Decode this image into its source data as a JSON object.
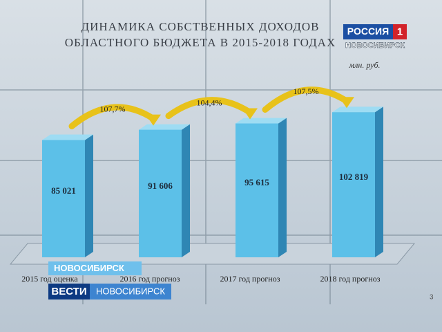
{
  "chart_data": {
    "type": "bar",
    "title": [
      "ДИНАМИКА СОБСТВЕННЫХ ДОХОДОВ",
      "ОБЛАСТНОГО БЮДЖЕТА В 2015-2018 ГОДАХ"
    ],
    "unit": "млн. руб.",
    "categories": [
      "2015 год оценка",
      "2016 год прогноз",
      "2017 год прогноз",
      "2018 год прогноз"
    ],
    "values": [
      85021,
      91606,
      95615,
      102819
    ],
    "value_labels": [
      "85 021",
      "91 606",
      "95 615",
      "102 819"
    ],
    "annotations": [
      "107,7%",
      "104,4%",
      "107,5%"
    ],
    "color": "#5cc0e8",
    "ylim": [
      10000,
      110000
    ]
  },
  "slide_number": "3",
  "overlay": {
    "logo": "РОССИЯ",
    "logo_number": "1",
    "logo_region": "НОВОСИБИРСК",
    "location": "НОВОСИБИРСК",
    "program": "ВЕСТИ",
    "program_region": "НОВОСИБИРСК"
  }
}
